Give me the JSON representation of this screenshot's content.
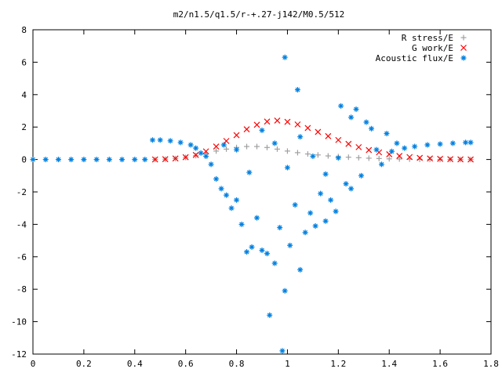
{
  "chart_data": {
    "type": "scatter",
    "title": "m2/n1.5/q1.5/r-+.27-j142/M0.5/512",
    "xlabel": "",
    "ylabel": "",
    "xlim": [
      0,
      1.8
    ],
    "ylim": [
      -12,
      8
    ],
    "x_ticks": [
      "0",
      "0.2",
      "0.4",
      "0.6",
      "0.8",
      "1",
      "1.2",
      "1.4",
      "1.6",
      "1.8"
    ],
    "y_ticks": [
      "8",
      "6",
      "4",
      "2",
      "0",
      "-2",
      "-4",
      "-6",
      "-8",
      "-10",
      "-12"
    ],
    "grid": false,
    "legend_position": "top-right",
    "series": [
      {
        "name": "R stress/E",
        "marker": "plus",
        "color": "#a0a0a0",
        "points": [
          [
            0.48,
            0.0
          ],
          [
            0.52,
            0.02
          ],
          [
            0.56,
            0.06
          ],
          [
            0.6,
            0.13
          ],
          [
            0.64,
            0.24
          ],
          [
            0.68,
            0.38
          ],
          [
            0.72,
            0.52
          ],
          [
            0.76,
            0.64
          ],
          [
            0.8,
            0.74
          ],
          [
            0.84,
            0.8
          ],
          [
            0.88,
            0.8
          ],
          [
            0.92,
            0.74
          ],
          [
            0.96,
            0.64
          ],
          [
            1.0,
            0.52
          ],
          [
            1.04,
            0.42
          ],
          [
            1.08,
            0.34
          ],
          [
            1.12,
            0.28
          ],
          [
            1.16,
            0.22
          ],
          [
            1.2,
            0.18
          ],
          [
            1.24,
            0.14
          ],
          [
            1.28,
            0.11
          ],
          [
            1.32,
            0.08
          ],
          [
            1.36,
            0.06
          ],
          [
            1.4,
            0.04
          ],
          [
            1.44,
            0.03
          ],
          [
            1.48,
            0.02
          ],
          [
            1.52,
            0.01
          ],
          [
            1.56,
            0.01
          ],
          [
            1.6,
            0.0
          ],
          [
            1.64,
            0.0
          ],
          [
            1.68,
            0.0
          ],
          [
            1.72,
            0.0
          ]
        ]
      },
      {
        "name": "G work/E",
        "marker": "cross",
        "color": "#ff0000",
        "points": [
          [
            0.48,
            0.0
          ],
          [
            0.52,
            0.02
          ],
          [
            0.56,
            0.06
          ],
          [
            0.6,
            0.14
          ],
          [
            0.64,
            0.28
          ],
          [
            0.68,
            0.5
          ],
          [
            0.72,
            0.8
          ],
          [
            0.76,
            1.14
          ],
          [
            0.8,
            1.5
          ],
          [
            0.84,
            1.86
          ],
          [
            0.88,
            2.14
          ],
          [
            0.92,
            2.34
          ],
          [
            0.96,
            2.4
          ],
          [
            1.0,
            2.32
          ],
          [
            1.04,
            2.16
          ],
          [
            1.08,
            1.94
          ],
          [
            1.12,
            1.7
          ],
          [
            1.16,
            1.44
          ],
          [
            1.2,
            1.2
          ],
          [
            1.24,
            0.96
          ],
          [
            1.28,
            0.76
          ],
          [
            1.32,
            0.58
          ],
          [
            1.36,
            0.44
          ],
          [
            1.4,
            0.32
          ],
          [
            1.44,
            0.22
          ],
          [
            1.48,
            0.15
          ],
          [
            1.52,
            0.1
          ],
          [
            1.56,
            0.06
          ],
          [
            1.6,
            0.04
          ],
          [
            1.64,
            0.02
          ],
          [
            1.68,
            0.01
          ],
          [
            1.72,
            0.0
          ]
        ]
      },
      {
        "name": "Acoustic flux/E",
        "marker": "star",
        "color": "#0080e0",
        "points": [
          [
            0.0,
            0.0
          ],
          [
            0.05,
            0.0
          ],
          [
            0.1,
            0.0
          ],
          [
            0.15,
            0.0
          ],
          [
            0.2,
            0.0
          ],
          [
            0.25,
            0.0
          ],
          [
            0.3,
            0.0
          ],
          [
            0.35,
            0.0
          ],
          [
            0.4,
            0.0
          ],
          [
            0.44,
            0.0
          ],
          [
            0.47,
            1.2
          ],
          [
            0.5,
            1.2
          ],
          [
            0.54,
            1.15
          ],
          [
            0.58,
            1.05
          ],
          [
            0.62,
            0.9
          ],
          [
            0.64,
            0.7
          ],
          [
            0.66,
            0.4
          ],
          [
            0.68,
            0.2
          ],
          [
            0.7,
            -0.3
          ],
          [
            0.72,
            -1.2
          ],
          [
            0.74,
            -1.8
          ],
          [
            0.76,
            -2.2
          ],
          [
            0.78,
            -3.0
          ],
          [
            0.8,
            -2.5
          ],
          [
            0.82,
            -4.0
          ],
          [
            0.84,
            -5.7
          ],
          [
            0.86,
            -5.4
          ],
          [
            0.88,
            -3.6
          ],
          [
            0.9,
            -5.6
          ],
          [
            0.92,
            -5.8
          ],
          [
            0.93,
            -9.6
          ],
          [
            0.95,
            -6.4
          ],
          [
            0.97,
            -4.2
          ],
          [
            0.98,
            -11.8
          ],
          [
            0.99,
            -8.1
          ],
          [
            0.99,
            6.3
          ],
          [
            1.01,
            -5.3
          ],
          [
            1.03,
            -2.8
          ],
          [
            1.04,
            4.3
          ],
          [
            1.05,
            -6.8
          ],
          [
            1.07,
            -4.5
          ],
          [
            1.09,
            -3.3
          ],
          [
            1.11,
            -4.1
          ],
          [
            1.13,
            -2.1
          ],
          [
            1.15,
            -3.8
          ],
          [
            1.17,
            -2.5
          ],
          [
            1.19,
            -3.2
          ],
          [
            1.21,
            3.3
          ],
          [
            1.23,
            -1.5
          ],
          [
            1.25,
            2.6
          ],
          [
            1.27,
            3.1
          ],
          [
            1.29,
            -1.0
          ],
          [
            1.31,
            2.3
          ],
          [
            1.33,
            1.9
          ],
          [
            1.35,
            0.6
          ],
          [
            1.37,
            -0.3
          ],
          [
            1.39,
            1.6
          ],
          [
            1.41,
            0.5
          ],
          [
            1.43,
            1.0
          ],
          [
            1.46,
            0.7
          ],
          [
            1.5,
            0.8
          ],
          [
            1.55,
            0.9
          ],
          [
            1.6,
            0.95
          ],
          [
            1.65,
            1.0
          ],
          [
            1.7,
            1.05
          ],
          [
            1.72,
            1.05
          ],
          [
            0.75,
            0.9
          ],
          [
            0.8,
            0.6
          ],
          [
            0.85,
            -0.8
          ],
          [
            0.9,
            1.8
          ],
          [
            0.95,
            1.0
          ],
          [
            1.0,
            -0.5
          ],
          [
            1.05,
            1.4
          ],
          [
            1.1,
            0.2
          ],
          [
            1.15,
            -0.9
          ],
          [
            1.2,
            0.1
          ],
          [
            1.25,
            -1.8
          ]
        ]
      }
    ]
  }
}
